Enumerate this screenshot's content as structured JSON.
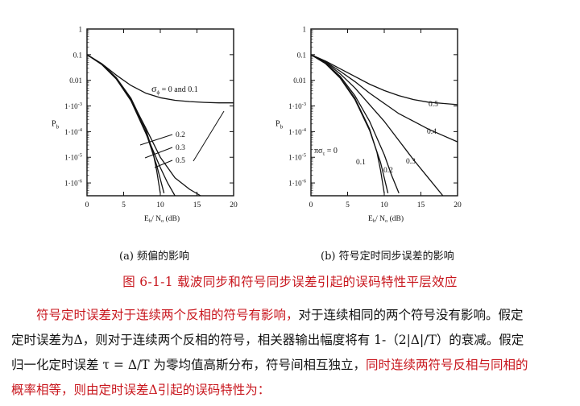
{
  "chart_data": [
    {
      "type": "line",
      "ylabel": "P",
      "ylabel_sub": "b",
      "xlabel": "E",
      "xlabel_sub1": "b",
      "xlabel_mid": "/ N",
      "xlabel_sub2": "o",
      "xlabel_unit": " (dB)",
      "xlim": [
        0,
        20
      ],
      "ylim_log10": [
        -6.5,
        0
      ],
      "x_ticks": [
        "0",
        "5",
        "10",
        "15",
        "20"
      ],
      "y_ticks": [
        "1",
        "0.1",
        "0.01",
        "1·10",
        "1·10",
        "1·10",
        "1·10"
      ],
      "y_tick_exps": [
        "",
        "",
        "",
        "-3",
        "-4",
        "-5",
        "-6"
      ],
      "annotation_sigma": "σ",
      "annotation_sub": "ϕ",
      "annotation_text": " = 0 and 0.1",
      "series": [
        {
          "label": "",
          "x": [
            0,
            2,
            4,
            6,
            8,
            9,
            9.5,
            10
          ],
          "log10y": [
            -1.0,
            -1.35,
            -1.9,
            -2.7,
            -3.9,
            -4.8,
            -5.5,
            -6.4
          ]
        },
        {
          "label": "",
          "x": [
            0,
            2,
            4,
            6,
            8,
            9.5,
            10.5
          ],
          "log10y": [
            -1.0,
            -1.36,
            -1.92,
            -2.75,
            -4.0,
            -5.3,
            -6.4
          ]
        },
        {
          "label": "0.2",
          "x": [
            0,
            2,
            4,
            6,
            8,
            10,
            11,
            12
          ],
          "log10y": [
            -1.0,
            -1.38,
            -1.95,
            -2.8,
            -4.05,
            -5.4,
            -6.0,
            -6.5
          ]
        },
        {
          "label": "0.3",
          "x": [
            0,
            2,
            4,
            6,
            8,
            10,
            12,
            14,
            15.5
          ],
          "log10y": [
            -1.0,
            -1.38,
            -1.95,
            -2.75,
            -3.85,
            -5.0,
            -5.8,
            -6.25,
            -6.5
          ]
        },
        {
          "label": "0.5",
          "x": [
            0,
            2,
            4,
            6,
            8,
            10,
            12,
            14,
            16,
            18,
            20
          ],
          "log10y": [
            -1.0,
            -1.35,
            -1.8,
            -2.2,
            -2.5,
            -2.68,
            -2.78,
            -2.83,
            -2.86,
            -2.88,
            -2.88
          ]
        }
      ],
      "labels": [
        "0.2",
        "0.3",
        "0.5"
      ]
    },
    {
      "type": "line",
      "ylabel": "P",
      "ylabel_sub": "b",
      "xlabel": "E",
      "xlabel_sub1": "b",
      "xlabel_mid": "/ N",
      "xlabel_sub2": "o",
      "xlabel_unit": " (dB)",
      "xlim": [
        0,
        20
      ],
      "ylim_log10": [
        -6.5,
        0
      ],
      "x_ticks": [
        "0",
        "5",
        "10",
        "15",
        "20"
      ],
      "y_ticks": [
        "1",
        "0.1",
        "0.01",
        "1·10",
        "1·10",
        "1·10",
        "1·10"
      ],
      "y_tick_exps": [
        "",
        "",
        "",
        "-3",
        "-4",
        "-5",
        "-6"
      ],
      "annotation_pi_sigma": "πσ",
      "annotation_sub": "τ",
      "annotation_text": " = 0",
      "series": [
        {
          "label": "0",
          "x": [
            0,
            2,
            4,
            6,
            8,
            9,
            9.5,
            10
          ],
          "log10y": [
            -1.0,
            -1.35,
            -1.9,
            -2.7,
            -3.9,
            -4.8,
            -5.5,
            -6.4
          ]
        },
        {
          "label": "0.1",
          "x": [
            0,
            2,
            4,
            6,
            8,
            9.5,
            10.5
          ],
          "log10y": [
            -1.0,
            -1.35,
            -1.92,
            -2.75,
            -3.95,
            -5.2,
            -6.4
          ]
        },
        {
          "label": "0.2",
          "x": [
            0,
            2,
            4,
            6,
            8,
            10,
            11,
            12
          ],
          "log10y": [
            -1.0,
            -1.33,
            -1.85,
            -2.6,
            -3.6,
            -4.9,
            -5.7,
            -6.4
          ]
        },
        {
          "label": "0.3",
          "x": [
            0,
            2,
            4,
            6,
            8,
            10,
            12,
            14,
            16,
            18
          ],
          "log10y": [
            -1.0,
            -1.3,
            -1.75,
            -2.3,
            -2.95,
            -3.6,
            -4.35,
            -5.1,
            -5.8,
            -6.5
          ]
        },
        {
          "label": "0.4",
          "x": [
            0,
            2,
            4,
            6,
            8,
            10,
            12,
            14,
            16,
            18,
            20
          ],
          "log10y": [
            -1.0,
            -1.28,
            -1.65,
            -2.05,
            -2.5,
            -2.9,
            -3.3,
            -3.6,
            -3.9,
            -4.15,
            -4.4
          ]
        },
        {
          "label": "0.5",
          "x": [
            0,
            2,
            4,
            6,
            8,
            10,
            12,
            14,
            16,
            18,
            20
          ],
          "log10y": [
            -1.0,
            -1.25,
            -1.55,
            -1.85,
            -2.15,
            -2.4,
            -2.6,
            -2.75,
            -2.85,
            -2.9,
            -2.95
          ]
        }
      ],
      "labels": [
        "0",
        "0.1",
        "0.2",
        "0.3",
        "0.4",
        "0.5"
      ]
    }
  ],
  "captions": {
    "a": "(a)  频偏的影响",
    "b": "(b)  符号定时同步误差的影响",
    "figure": "图 6-1-1    载波同步和符号同步误差引起的误码特性平层效应"
  },
  "paragraph": {
    "l1_red": "符号定时误差对于连续两个反相的符号有影响，",
    "l1_black": "对于连续相同的两个符号没有影响。假定",
    "l2": "定时误差为Δ，则对于连续两个反相的符号，相关器输出幅度将有 1-（2|Δ|/T）的衰减。假定",
    "l3_black": "归一化定时误差 τ = Δ/T 为零均值高斯分布，符号间相互独立，",
    "l3_red": "同时连续两符号反相与同相的",
    "l4_red": "概率相等，则由定时误差Δ引起的误码特性为："
  }
}
